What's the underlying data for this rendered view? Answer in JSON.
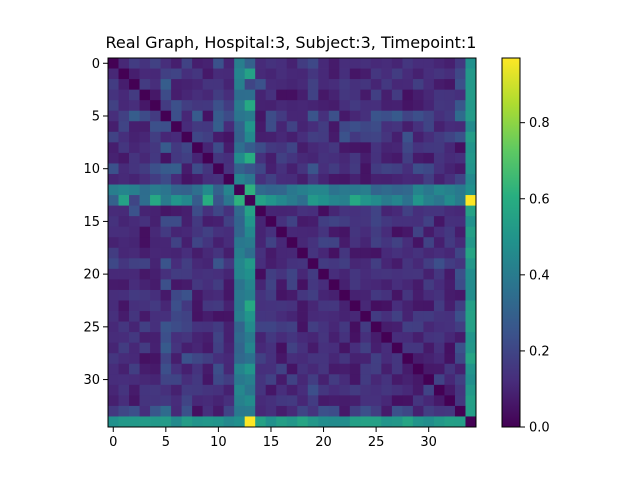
{
  "chart_data": {
    "type": "heatmap",
    "title": "Real Graph, Hospital:3, Subject:3, Timepoint:1",
    "n": 35,
    "xticks": [
      0,
      5,
      10,
      15,
      20,
      25,
      30
    ],
    "yticks": [
      0,
      5,
      10,
      15,
      20,
      25,
      30
    ],
    "colormap": "viridis",
    "colorbar": {
      "vmin": 0.0,
      "vmax": 0.97,
      "ticks": [
        "0.0",
        "0.2",
        "0.4",
        "0.6",
        "0.8"
      ]
    },
    "hub_values": [
      0.3,
      0.55,
      0.2,
      0.35,
      0.58,
      0.4,
      0.5,
      0.45,
      0.28,
      0.6,
      0.25,
      0.38,
      0.62,
      0.0,
      0.55,
      0.5,
      0.45,
      0.4,
      0.35,
      0.52,
      0.48,
      0.44,
      0.42,
      0.58,
      0.5,
      0.46,
      0.4,
      0.44,
      0.36,
      0.5,
      0.42,
      0.38,
      0.46,
      0.4,
      0.97
    ],
    "row_weights": [
      0.15,
      0.1,
      0.18,
      0.14,
      0.12,
      0.4,
      0.35,
      0.3,
      0.2,
      0.15,
      0.3,
      0.1,
      0.55,
      0.85,
      0.25,
      0.18,
      0.15,
      0.2,
      0.12,
      0.25,
      0.15,
      0.1,
      0.12,
      0.1,
      0.14,
      0.18,
      0.12,
      0.16,
      0.1,
      0.12,
      0.14,
      0.12,
      0.1,
      0.35,
      0.6
    ],
    "second_hub": 12,
    "seed": 7
  }
}
